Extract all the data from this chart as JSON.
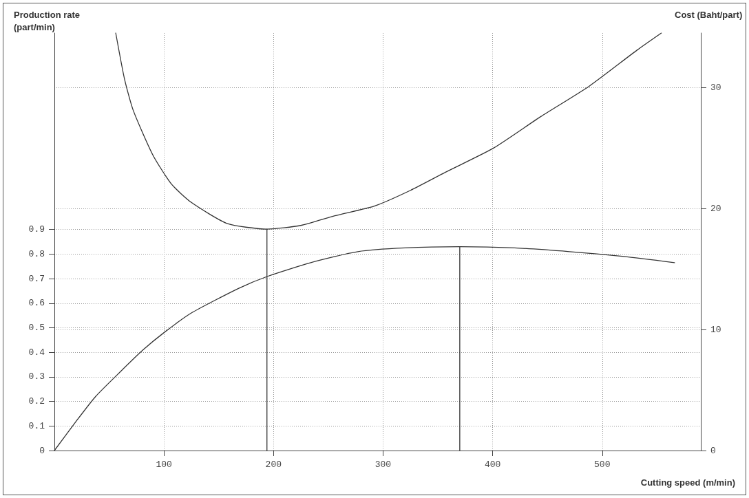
{
  "chart_data": {
    "type": "line",
    "xlabel": "Cutting speed (m/min)",
    "ylabel": "Production rate (part/min)",
    "y2label": "Cost (Baht/part)",
    "xlim": [
      0,
      590
    ],
    "xticks": [
      100,
      200,
      300,
      400,
      500
    ],
    "ylim": [
      0,
      1.7
    ],
    "yticks": [
      0,
      0.1,
      0.2,
      0.3,
      0.4,
      0.5,
      0.6,
      0.7,
      0.8,
      0.9
    ],
    "y2lim": [
      0,
      34.5
    ],
    "y2ticks": [
      0,
      10,
      20,
      30
    ],
    "grid": true,
    "marker": "none",
    "line_style": "solid",
    "series": [
      {
        "color": "#333333",
        "x": [
          0,
          20,
          37.6,
          60,
          81,
          100,
          125,
          168,
          195,
          234,
          277,
          320,
          370,
          420,
          470,
          520,
          566
        ],
        "values": [
          0,
          0.12,
          0.22,
          0.32,
          0.41,
          0.48,
          0.56,
          0.66,
          0.71,
          0.765,
          0.81,
          0.825,
          0.83,
          0.825,
          0.81,
          0.79,
          0.765
        ]
      },
      {
        "color": "#333333",
        "axis": "y2",
        "x": [
          56,
          64,
          72,
          90,
          107,
          125,
          158,
          194,
          225,
          256,
          292,
          325,
          357,
          401,
          444,
          488,
          532,
          554
        ],
        "values": [
          34.5,
          30.7,
          28.1,
          24.4,
          22.0,
          20.5,
          18.75,
          18.3,
          18.6,
          19.4,
          20.2,
          21.5,
          23.0,
          25.0,
          27.6,
          30.1,
          33.1,
          34.5
        ]
      },
      {
        "color": "#333333",
        "axis": "y2",
        "x": [
          194,
          194
        ],
        "values": [
          0,
          18.3
        ]
      },
      {
        "color": "#333333",
        "x": [
          370,
          370
        ],
        "values": [
          0,
          0.83
        ]
      }
    ]
  }
}
